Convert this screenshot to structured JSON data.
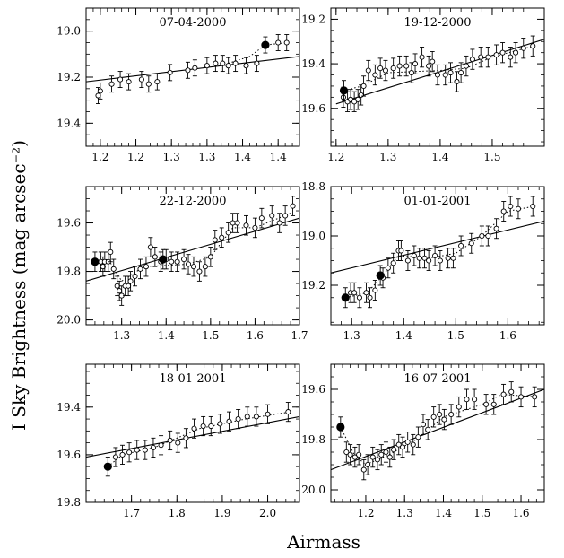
{
  "figure": {
    "ylabel": "I Sky Brightness (mag arcsec⁻²)",
    "xlabel": "Airmass"
  },
  "chart_data": [
    {
      "type": "scatter",
      "title": "07-04-2000",
      "xlim": [
        1.18,
        1.48
      ],
      "ylim": [
        18.9,
        19.5
      ],
      "y_inverted": true,
      "xticks": [
        1.2,
        1.25,
        1.3,
        1.35,
        1.4,
        1.45
      ],
      "xtick_labels": [
        "1.2",
        "1.2",
        "1.3",
        "1.3",
        "1.4",
        "1.4"
      ],
      "yticks": [
        19.0,
        19.2,
        19.4
      ],
      "ytick_labels": [
        "19.0",
        "19.2",
        "19.4"
      ],
      "open_points": [
        [
          1.197,
          19.28
        ],
        [
          1.2,
          19.26
        ],
        [
          1.216,
          19.23
        ],
        [
          1.228,
          19.21
        ],
        [
          1.24,
          19.22
        ],
        [
          1.258,
          19.21
        ],
        [
          1.268,
          19.23
        ],
        [
          1.28,
          19.22
        ],
        [
          1.298,
          19.18
        ],
        [
          1.323,
          19.17
        ],
        [
          1.333,
          19.16
        ],
        [
          1.35,
          19.15
        ],
        [
          1.362,
          19.14
        ],
        [
          1.372,
          19.14
        ],
        [
          1.38,
          19.15
        ],
        [
          1.39,
          19.14
        ],
        [
          1.405,
          19.15
        ],
        [
          1.42,
          19.14
        ],
        [
          1.45,
          19.05
        ],
        [
          1.462,
          19.05
        ]
      ],
      "filled_points": [
        [
          1.432,
          19.06
        ]
      ],
      "error": 0.035,
      "fit_line": [
        [
          1.18,
          19.22
        ],
        [
          1.48,
          19.11
        ]
      ],
      "dotted_line": [
        [
          1.38,
          19.14
        ],
        [
          1.41,
          19.11
        ],
        [
          1.432,
          19.06
        ],
        [
          1.465,
          19.05
        ]
      ]
    },
    {
      "type": "scatter",
      "title": "19-12-2000",
      "xlim": [
        1.19,
        1.6
      ],
      "ylim": [
        19.15,
        19.77
      ],
      "y_inverted": true,
      "xticks": [
        1.2,
        1.3,
        1.4,
        1.5
      ],
      "xtick_labels": [
        "1.2",
        "1.3",
        "1.4",
        "1.5"
      ],
      "yticks": [
        19.2,
        19.4,
        19.6
      ],
      "ytick_labels": [
        "19.2",
        "19.4",
        "19.6"
      ],
      "open_points": [
        [
          1.214,
          19.55
        ],
        [
          1.222,
          19.57
        ],
        [
          1.228,
          19.56
        ],
        [
          1.235,
          19.57
        ],
        [
          1.242,
          19.56
        ],
        [
          1.248,
          19.54
        ],
        [
          1.253,
          19.5
        ],
        [
          1.262,
          19.43
        ],
        [
          1.275,
          19.45
        ],
        [
          1.285,
          19.42
        ],
        [
          1.295,
          19.43
        ],
        [
          1.31,
          19.42
        ],
        [
          1.322,
          19.41
        ],
        [
          1.335,
          19.41
        ],
        [
          1.345,
          19.44
        ],
        [
          1.352,
          19.4
        ],
        [
          1.365,
          19.37
        ],
        [
          1.378,
          19.41
        ],
        [
          1.385,
          19.39
        ],
        [
          1.395,
          19.45
        ],
        [
          1.41,
          19.45
        ],
        [
          1.42,
          19.44
        ],
        [
          1.432,
          19.48
        ],
        [
          1.44,
          19.44
        ],
        [
          1.45,
          19.41
        ],
        [
          1.462,
          19.38
        ],
        [
          1.478,
          19.37
        ],
        [
          1.492,
          19.37
        ],
        [
          1.508,
          19.36
        ],
        [
          1.52,
          19.35
        ],
        [
          1.535,
          19.37
        ],
        [
          1.545,
          19.35
        ],
        [
          1.56,
          19.33
        ],
        [
          1.578,
          19.32
        ]
      ],
      "filled_points": [
        [
          1.215,
          19.52
        ]
      ],
      "error": 0.045,
      "fit_line": [
        [
          1.2,
          19.58
        ],
        [
          1.6,
          19.29
        ]
      ],
      "dotted_line": [
        [
          1.215,
          19.52
        ],
        [
          1.25,
          19.5
        ],
        [
          1.3,
          19.44
        ],
        [
          1.4,
          19.43
        ],
        [
          1.45,
          19.42
        ],
        [
          1.5,
          19.37
        ],
        [
          1.58,
          19.32
        ]
      ]
    },
    {
      "type": "scatter",
      "title": "22-12-2000",
      "xlim": [
        1.22,
        1.7
      ],
      "ylim": [
        19.45,
        20.02
      ],
      "y_inverted": true,
      "xticks": [
        1.3,
        1.4,
        1.5,
        1.6,
        1.7
      ],
      "xtick_labels": [
        "1.3",
        "1.4",
        "1.5",
        "1.6",
        "1.7"
      ],
      "yticks": [
        19.6,
        19.8,
        20.0
      ],
      "ytick_labels": [
        "19.6",
        "19.8",
        "20.0"
      ],
      "open_points": [
        [
          1.253,
          19.76
        ],
        [
          1.258,
          19.78
        ],
        [
          1.262,
          19.76
        ],
        [
          1.27,
          19.76
        ],
        [
          1.275,
          19.72
        ],
        [
          1.282,
          19.79
        ],
        [
          1.29,
          19.86
        ],
        [
          1.295,
          19.88
        ],
        [
          1.3,
          19.9
        ],
        [
          1.308,
          19.86
        ],
        [
          1.315,
          19.86
        ],
        [
          1.32,
          19.84
        ],
        [
          1.33,
          19.82
        ],
        [
          1.342,
          19.79
        ],
        [
          1.355,
          19.78
        ],
        [
          1.365,
          19.7
        ],
        [
          1.375,
          19.74
        ],
        [
          1.388,
          19.76
        ],
        [
          1.4,
          19.75
        ],
        [
          1.412,
          19.76
        ],
        [
          1.425,
          19.76
        ],
        [
          1.44,
          19.75
        ],
        [
          1.45,
          19.77
        ],
        [
          1.462,
          19.78
        ],
        [
          1.475,
          19.8
        ],
        [
          1.488,
          19.78
        ],
        [
          1.5,
          19.74
        ],
        [
          1.51,
          19.67
        ],
        [
          1.525,
          19.66
        ],
        [
          1.54,
          19.64
        ],
        [
          1.55,
          19.6
        ],
        [
          1.56,
          19.6
        ],
        [
          1.58,
          19.61
        ],
        [
          1.6,
          19.62
        ],
        [
          1.615,
          19.58
        ],
        [
          1.638,
          19.57
        ],
        [
          1.655,
          19.6
        ],
        [
          1.668,
          19.57
        ],
        [
          1.685,
          19.53
        ]
      ],
      "filled_points": [
        [
          1.24,
          19.76
        ],
        [
          1.393,
          19.75
        ]
      ],
      "error": 0.04,
      "fit_line": [
        [
          1.22,
          19.84
        ],
        [
          1.7,
          19.58
        ]
      ],
      "dotted_line": [
        [
          1.24,
          19.76
        ],
        [
          1.27,
          19.75
        ],
        [
          1.3,
          19.84
        ],
        [
          1.35,
          19.78
        ],
        [
          1.45,
          19.77
        ],
        [
          1.5,
          19.74
        ],
        [
          1.55,
          19.62
        ],
        [
          1.6,
          19.62
        ],
        [
          1.68,
          19.56
        ]
      ]
    },
    {
      "type": "scatter",
      "title": "01-01-2001",
      "xlim": [
        1.26,
        1.67
      ],
      "ylim": [
        18.8,
        19.36
      ],
      "y_inverted": true,
      "xticks": [
        1.3,
        1.4,
        1.5,
        1.6
      ],
      "xtick_labels": [
        "1.3",
        "1.4",
        "1.5",
        "1.6"
      ],
      "yticks": [
        18.8,
        19.0,
        19.2
      ],
      "ytick_labels": [
        "18.8",
        "19.0",
        "19.2"
      ],
      "open_points": [
        [
          1.298,
          19.23
        ],
        [
          1.305,
          19.23
        ],
        [
          1.315,
          19.25
        ],
        [
          1.328,
          19.23
        ],
        [
          1.335,
          19.25
        ],
        [
          1.345,
          19.22
        ],
        [
          1.36,
          19.17
        ],
        [
          1.37,
          19.13
        ],
        [
          1.38,
          19.11
        ],
        [
          1.39,
          19.06
        ],
        [
          1.395,
          19.06
        ],
        [
          1.408,
          19.1
        ],
        [
          1.42,
          19.08
        ],
        [
          1.43,
          19.09
        ],
        [
          1.44,
          19.09
        ],
        [
          1.448,
          19.1
        ],
        [
          1.46,
          19.08
        ],
        [
          1.47,
          19.1
        ],
        [
          1.485,
          19.09
        ],
        [
          1.495,
          19.09
        ],
        [
          1.51,
          19.04
        ],
        [
          1.53,
          19.03
        ],
        [
          1.55,
          19.0
        ],
        [
          1.562,
          19.0
        ],
        [
          1.578,
          18.97
        ],
        [
          1.592,
          18.9
        ],
        [
          1.605,
          18.88
        ],
        [
          1.62,
          18.89
        ],
        [
          1.648,
          18.88
        ]
      ],
      "filled_points": [
        [
          1.288,
          19.25
        ],
        [
          1.355,
          19.16
        ]
      ],
      "error": 0.04,
      "fit_line": [
        [
          1.26,
          19.15
        ],
        [
          1.67,
          18.94
        ]
      ],
      "dotted_line": [
        [
          1.288,
          19.25
        ],
        [
          1.33,
          19.23
        ],
        [
          1.36,
          19.16
        ],
        [
          1.39,
          19.08
        ],
        [
          1.45,
          19.09
        ],
        [
          1.5,
          19.07
        ],
        [
          1.55,
          19.0
        ],
        [
          1.6,
          18.9
        ],
        [
          1.65,
          18.88
        ]
      ]
    },
    {
      "type": "scatter",
      "title": "18-01-2001",
      "xlim": [
        1.6,
        2.07
      ],
      "ylim": [
        19.22,
        19.8
      ],
      "y_inverted": true,
      "xticks": [
        1.7,
        1.8,
        1.9,
        2.0
      ],
      "xtick_labels": [
        "1.7",
        "1.8",
        "1.9",
        "2.0"
      ],
      "yticks": [
        19.4,
        19.6,
        19.8
      ],
      "ytick_labels": [
        "19.4",
        "19.6",
        "19.8"
      ],
      "open_points": [
        [
          1.665,
          19.61
        ],
        [
          1.68,
          19.6
        ],
        [
          1.695,
          19.59
        ],
        [
          1.712,
          19.58
        ],
        [
          1.73,
          19.58
        ],
        [
          1.748,
          19.57
        ],
        [
          1.765,
          19.56
        ],
        [
          1.785,
          19.54
        ],
        [
          1.802,
          19.55
        ],
        [
          1.82,
          19.53
        ],
        [
          1.838,
          19.49
        ],
        [
          1.858,
          19.48
        ],
        [
          1.875,
          19.48
        ],
        [
          1.895,
          19.47
        ],
        [
          1.915,
          19.46
        ],
        [
          1.935,
          19.45
        ],
        [
          1.955,
          19.44
        ],
        [
          1.975,
          19.44
        ],
        [
          2.0,
          19.43
        ],
        [
          2.045,
          19.42
        ]
      ],
      "filled_points": [
        [
          1.648,
          19.65
        ]
      ],
      "error": 0.04,
      "fit_line": [
        [
          1.6,
          19.61
        ],
        [
          2.07,
          19.44
        ]
      ],
      "dotted_line": [
        [
          1.648,
          19.65
        ],
        [
          1.68,
          19.6
        ],
        [
          1.75,
          19.57
        ],
        [
          1.85,
          19.49
        ],
        [
          1.95,
          19.45
        ],
        [
          2.05,
          19.42
        ]
      ]
    },
    {
      "type": "scatter",
      "title": "16-07-2001",
      "xlim": [
        1.11,
        1.66
      ],
      "ylim": [
        19.5,
        20.05
      ],
      "y_inverted": true,
      "xticks": [
        1.2,
        1.3,
        1.4,
        1.5,
        1.6
      ],
      "xtick_labels": [
        "1.2",
        "1.3",
        "1.4",
        "1.5",
        "1.6"
      ],
      "yticks": [
        19.6,
        19.8,
        20.0
      ],
      "ytick_labels": [
        "19.6",
        "19.8",
        "20.0"
      ],
      "open_points": [
        [
          1.15,
          19.85
        ],
        [
          1.16,
          19.86
        ],
        [
          1.172,
          19.87
        ],
        [
          1.182,
          19.86
        ],
        [
          1.195,
          19.92
        ],
        [
          1.205,
          19.9
        ],
        [
          1.218,
          19.87
        ],
        [
          1.23,
          19.88
        ],
        [
          1.24,
          19.86
        ],
        [
          1.252,
          19.85
        ],
        [
          1.262,
          19.87
        ],
        [
          1.272,
          19.84
        ],
        [
          1.285,
          19.82
        ],
        [
          1.295,
          19.83
        ],
        [
          1.308,
          19.81
        ],
        [
          1.322,
          19.82
        ],
        [
          1.335,
          19.79
        ],
        [
          1.348,
          19.74
        ],
        [
          1.36,
          19.76
        ],
        [
          1.375,
          19.71
        ],
        [
          1.39,
          19.7
        ],
        [
          1.402,
          19.72
        ],
        [
          1.42,
          19.7
        ],
        [
          1.44,
          19.67
        ],
        [
          1.46,
          19.64
        ],
        [
          1.48,
          19.64
        ],
        [
          1.51,
          19.66
        ],
        [
          1.53,
          19.66
        ],
        [
          1.555,
          19.62
        ],
        [
          1.575,
          19.61
        ],
        [
          1.6,
          19.63
        ],
        [
          1.635,
          19.63
        ]
      ],
      "filled_points": [
        [
          1.135,
          19.75
        ]
      ],
      "error": 0.04,
      "fit_line": [
        [
          1.11,
          19.92
        ],
        [
          1.66,
          19.6
        ]
      ],
      "dotted_line": [
        [
          1.135,
          19.75
        ],
        [
          1.17,
          19.86
        ],
        [
          1.2,
          19.9
        ],
        [
          1.26,
          19.86
        ],
        [
          1.33,
          19.8
        ],
        [
          1.4,
          19.71
        ],
        [
          1.5,
          19.66
        ],
        [
          1.55,
          19.62
        ],
        [
          1.64,
          19.63
        ]
      ]
    }
  ]
}
